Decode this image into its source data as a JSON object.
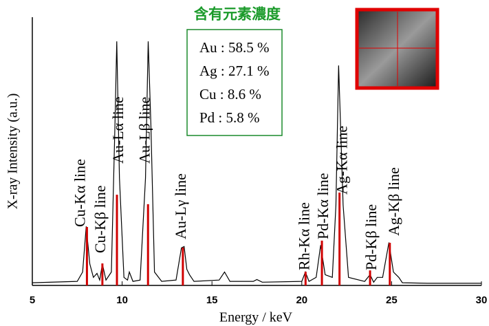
{
  "chart_data": {
    "type": "line",
    "x_label": "Energy / keV",
    "y_label": "X-ray Intensity (a.u.)",
    "xlim": [
      5,
      30
    ],
    "ylim": [
      0,
      100
    ],
    "xticks": [
      5,
      10,
      15,
      20,
      25,
      30
    ],
    "series": [
      {
        "color": "#000000",
        "x": [
          5,
          7.5,
          7.8,
          8.0,
          8.2,
          8.4,
          8.6,
          8.75,
          8.9,
          9.1,
          9.4,
          9.6,
          9.7,
          9.85,
          10.1,
          10.3,
          10.4,
          10.6,
          11.0,
          11.3,
          11.45,
          11.6,
          11.8,
          12.2,
          13.0,
          13.3,
          13.45,
          13.6,
          13.75,
          14.0,
          15.4,
          15.7,
          16.0,
          17.3,
          17.5,
          17.8,
          20.0,
          20.2,
          20.4,
          20.8,
          21.05,
          21.3,
          21.7,
          21.9,
          22.05,
          22.3,
          22.6,
          23.5,
          23.8,
          24.0,
          24.2,
          24.5,
          24.85,
          25.1,
          25.4,
          25.6,
          27,
          30
        ],
        "values": [
          1,
          1.5,
          5,
          22,
          8,
          3,
          4.5,
          2,
          8,
          2,
          5,
          60,
          91,
          40,
          3,
          2,
          5,
          1.5,
          2,
          40,
          91,
          60,
          5,
          1.5,
          2,
          14,
          14.5,
          6,
          4,
          1.5,
          2,
          5,
          1.5,
          1.5,
          2.2,
          1.2,
          1.5,
          5,
          1.5,
          3,
          15,
          4,
          3,
          30,
          82,
          30,
          3,
          1.5,
          4,
          1.2,
          3,
          3,
          16,
          5,
          3,
          1,
          0.8,
          0.8
        ]
      }
    ],
    "peaks": {
      "color": "#d00000",
      "x": [
        8.04,
        8.9,
        9.71,
        11.44,
        13.38,
        20.21,
        21.12,
        22.1,
        23.8,
        24.9
      ],
      "values": [
        21.8,
        8.2,
        33.8,
        30.3,
        14.1,
        5.1,
        16.7,
        34.6,
        5.6,
        15.9
      ],
      "labels": [
        "Cu-Kα line",
        "Cu-Kβ line",
        "Au-Lα line",
        "Au-Lβ line",
        "Au-Lγ line",
        "Rh-Kα line",
        "Pd-Kα line",
        "Ag-Kα line",
        "Pd-Kβ line",
        "Ag-Kβ line"
      ]
    },
    "inset_title": "含有元素濃度",
    "composition": [
      "Au : 58.5 %",
      "Ag : 27.1 %",
      "Cu : 8.6 %",
      "Pd : 5.8 %"
    ]
  }
}
